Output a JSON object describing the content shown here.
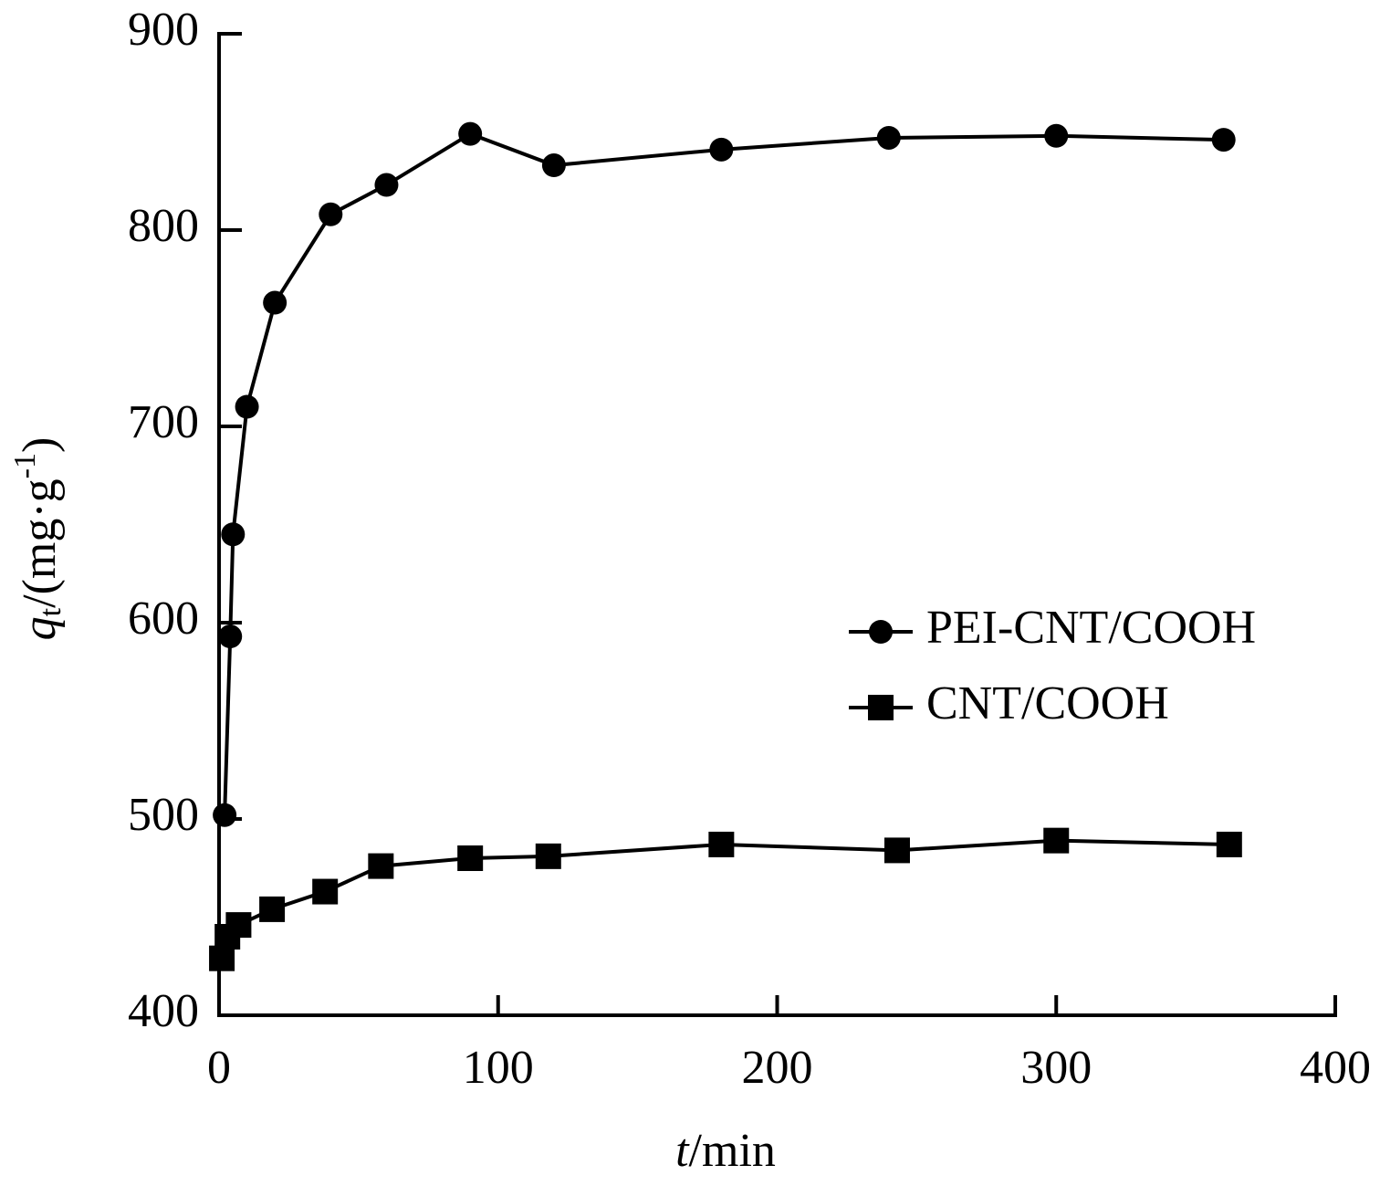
{
  "chart_data": {
    "type": "line",
    "x_label": {
      "italic": "t",
      "rest": "/min"
    },
    "y_label": {
      "q": "q",
      "sub": "t",
      "mid": "/(mg·g",
      "sup": "-1",
      "end": ")"
    },
    "xlim": [
      0,
      400
    ],
    "xticks": [
      0,
      100,
      200,
      300,
      400
    ],
    "ylim": [
      400,
      900
    ],
    "yticks": [
      400,
      500,
      600,
      700,
      800,
      900
    ],
    "legend": "right",
    "series": [
      {
        "name": "PEI-CNT/COOH",
        "color": "#000000",
        "marker": "circle",
        "x": [
          2,
          4,
          5,
          10,
          20,
          40,
          60,
          90,
          120,
          180,
          240,
          300,
          360
        ],
        "values": [
          502,
          593,
          645,
          710,
          763,
          808,
          823,
          849,
          833,
          841,
          847,
          848,
          846
        ]
      },
      {
        "name": "CNT/COOH",
        "color": "#000000",
        "marker": "square",
        "x": [
          1,
          3,
          7,
          19,
          38,
          58,
          90,
          118,
          180,
          243,
          300,
          362
        ],
        "values": [
          429,
          440,
          446,
          454,
          463,
          476,
          480,
          481,
          487,
          484,
          489,
          487
        ]
      }
    ]
  }
}
